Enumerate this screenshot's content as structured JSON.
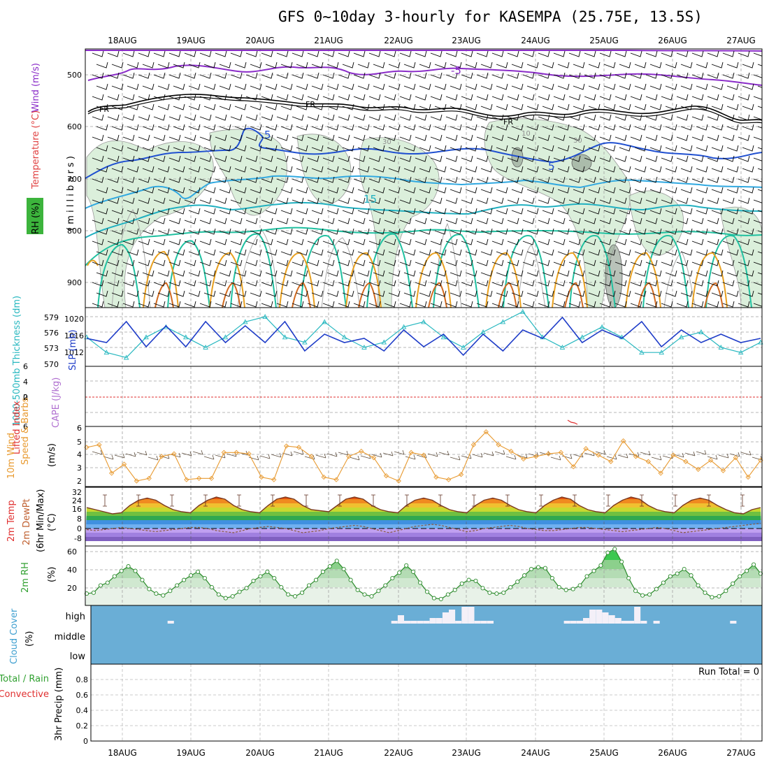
{
  "title": "GFS 0~10day 3-hourly for KASEMPA (25.75E, 13.5S)",
  "dates": [
    "18AUG",
    "19AUG",
    "20AUG",
    "21AUG",
    "22AUG",
    "23AUG",
    "24AUG",
    "25AUG",
    "26AUG",
    "27AUG"
  ],
  "labels": {
    "wind": "Wind (m/s)",
    "temperature": "Temperature (°C)",
    "rh_badge": "RH (%)",
    "millibars": "( m i l l i b a r s )",
    "thickness": "1000-500mb Thickness (dm)",
    "slp": "SLP (mb)",
    "lifted": "Lifted Index",
    "cape": "CAPE (J/kg)",
    "wind10": "10m Wind",
    "speed_barbs": "Speed & Barbs",
    "ms": "(m/s)",
    "temp2m": "2m Temp",
    "dew2m": "2m DewPt",
    "minmax": "(6hr Min/Max)",
    "celsius": "(°C)",
    "rh2m": "2m RH",
    "pct": "(%)",
    "cloud": "Cloud Cover",
    "cloud_pct": "(%)",
    "cloud_high": "high",
    "cloud_mid": "middle",
    "cloud_low": "low",
    "precip_total": "Total / Rain",
    "precip_conv": "Convective",
    "precip_3hr": "3hr Precip (mm)",
    "run_total": "Run Total = 0",
    "contour_fr": "FR",
    "contour_m5": "-5",
    "contour_5": "5",
    "contour_15": "15",
    "rh_10": "10",
    "rh_30": "30"
  },
  "colors": {
    "wind_purple": "#8a2cc8",
    "freezing": "#000000",
    "blue5": "#2050d0",
    "cyan15": "#20b0c0",
    "green": "#30c090",
    "orange": "#e8a020",
    "rh_fill": "#c8e6c8",
    "slp_line": "#1e3cc8",
    "thick_line": "#28b8c0",
    "lifted_red": "#e03030",
    "wind_orange": "#e89a30",
    "cloud_blue": "#6aaed6",
    "precip_grid": "#bbbbbb"
  },
  "chart_data": [
    {
      "type": "line",
      "panel": "upper-air",
      "ylabel": "( m i l l i b a r s )",
      "yticks": [
        500,
        600,
        700,
        800,
        900
      ],
      "ylim": [
        440,
        940
      ],
      "contours": [
        {
          "label": "-5",
          "level_mb": [
            505,
            500,
            498,
            505,
            495,
            503,
            500,
            508,
            510,
            515,
            520
          ]
        },
        {
          "label": "FR",
          "level_mb": [
            565,
            550,
            545,
            550,
            555,
            560,
            570,
            575,
            570,
            570,
            590
          ]
        },
        {
          "label": "5",
          "level_mb": [
            665,
            650,
            645,
            640,
            650,
            665,
            660,
            660,
            655,
            665,
            655
          ]
        },
        {
          "label": "15",
          "level_mb": [
            740,
            720,
            710,
            705,
            720,
            730,
            735,
            745,
            745,
            755,
            765
          ]
        }
      ]
    },
    {
      "type": "line",
      "panel": "slp-thickness",
      "ylabel_left": "1000-500mb Thickness (dm)",
      "ylabel_right": "SLP (mb)",
      "yticks_left": [
        579,
        576,
        573,
        570
      ],
      "yticks_right": [
        1020,
        1016,
        1012
      ],
      "series": [
        {
          "name": "SLP (mb)",
          "values": [
            1016,
            1015,
            1020,
            1014,
            1019,
            1014,
            1020,
            1015,
            1019,
            1015,
            1020,
            1013,
            1017,
            1015,
            1016,
            1013,
            1018,
            1014,
            1017,
            1012,
            1017,
            1013,
            1018,
            1016,
            1021,
            1015,
            1018,
            1016,
            1020,
            1014,
            1018,
            1015,
            1017,
            1015,
            1016
          ]
        },
        {
          "name": "1000-500mb Thickness (dm)",
          "values": [
            575,
            572,
            571,
            575,
            577,
            575,
            573,
            575,
            578,
            579,
            575,
            574,
            578,
            575,
            573,
            574,
            577,
            578,
            575,
            573,
            576,
            578,
            580,
            575,
            573,
            575,
            577,
            575,
            572,
            572,
            575,
            576,
            573,
            572,
            574
          ]
        }
      ]
    },
    {
      "type": "line",
      "panel": "lifted-cape",
      "ylabel": "Lifted Index",
      "ylabel_right": "CAPE (J/kg)",
      "yticks": [
        -4,
        -2,
        0,
        2,
        4,
        6
      ],
      "series": [
        {
          "name": "Lifted Index",
          "values": [
            0
          ]
        }
      ]
    },
    {
      "type": "line",
      "panel": "wind10m",
      "ylabel": "10m Wind Speed & Barbs (m/s)",
      "yticks": [
        2,
        3,
        4,
        5,
        6
      ],
      "ylim": [
        2,
        6
      ],
      "series": [
        {
          "name": "10m Wind Speed",
          "values": [
            4.6,
            4.8,
            2.6,
            3.3,
            2.0,
            2.2,
            3.9,
            4.1,
            2.1,
            2.2,
            2.2,
            4.2,
            4.2,
            4.1,
            2.3,
            2.1,
            4.7,
            4.6,
            3.9,
            2.3,
            2.1,
            3.9,
            4.3,
            3.8,
            2.4,
            2.0,
            4.2,
            4.0,
            2.3,
            2.1,
            2.5,
            4.8,
            5.8,
            4.8,
            4.3,
            3.7,
            3.9,
            4.1,
            4.2,
            3.1,
            4.5,
            4.0,
            3.5,
            5.1,
            3.9,
            3.5,
            2.6,
            4.0,
            3.5,
            2.9,
            3.6,
            2.8,
            3.8,
            2.3,
            3.6
          ]
        }
      ]
    },
    {
      "type": "area",
      "panel": "temp-dewpt",
      "ylabel": "2m Temp / 2m DewPt (6hr Min/Max) (°C)",
      "yticks": [
        -8,
        0,
        8,
        16,
        24,
        32
      ],
      "ylim": [
        -12,
        34
      ],
      "series": [
        {
          "name": "2m Temp",
          "values": [
            20,
            18,
            16,
            14,
            15,
            22,
            27,
            29,
            27,
            22,
            18,
            16,
            15,
            22,
            27,
            30,
            28,
            22,
            18,
            16,
            15,
            22,
            28,
            30,
            28,
            22,
            18,
            17,
            16,
            22,
            28,
            30,
            28,
            22,
            18,
            16,
            15,
            22,
            27,
            29,
            27,
            22,
            18,
            16,
            15,
            22,
            27,
            29,
            27,
            22,
            18,
            16,
            15,
            22,
            27,
            30,
            28,
            22,
            18,
            16,
            15,
            22,
            27,
            30,
            28,
            22,
            18,
            16,
            15,
            22,
            27,
            29,
            27,
            22,
            18,
            15,
            14,
            18,
            20
          ]
        },
        {
          "name": "2m DewPt",
          "values": [
            -1,
            -2,
            -1,
            0,
            1,
            0,
            -1,
            -2,
            -3,
            -2,
            -1,
            0,
            1,
            1,
            0,
            -2,
            -3,
            -4,
            -2,
            0,
            1,
            2,
            1,
            0,
            -2,
            -4,
            -3,
            -2,
            0,
            1,
            2,
            3,
            2,
            0,
            -2,
            -4,
            -2,
            0,
            2,
            3,
            4,
            3,
            1,
            -1,
            -3,
            -2,
            0,
            1,
            2,
            3,
            2,
            0,
            -1,
            -2,
            -2,
            -1,
            0,
            1,
            1,
            0,
            -1,
            -2,
            -3,
            -2,
            -1,
            0,
            1,
            0,
            -2,
            -4,
            -3,
            -2,
            -1,
            0,
            1,
            2,
            3,
            4,
            5
          ]
        }
      ]
    },
    {
      "type": "area",
      "panel": "rh2m",
      "ylabel": "2m RH (%)",
      "yticks": [
        20,
        40,
        60
      ],
      "ylim": [
        0,
        62
      ],
      "series": [
        {
          "name": "2m RH",
          "values": [
            13,
            14,
            22,
            25,
            32,
            38,
            43,
            38,
            28,
            18,
            13,
            11,
            16,
            22,
            28,
            33,
            37,
            30,
            20,
            12,
            8,
            10,
            15,
            19,
            27,
            32,
            37,
            30,
            20,
            12,
            10,
            14,
            22,
            28,
            37,
            43,
            49,
            40,
            28,
            17,
            12,
            10,
            16,
            22,
            30,
            36,
            44,
            37,
            25,
            15,
            8,
            7,
            12,
            17,
            24,
            28,
            27,
            19,
            14,
            13,
            14,
            20,
            26,
            33,
            40,
            42,
            41,
            30,
            20,
            17,
            18,
            22,
            32,
            38,
            44,
            58,
            62,
            48,
            30,
            16,
            11,
            12,
            18,
            25,
            32,
            35,
            40,
            33,
            22,
            14,
            9,
            10,
            16,
            24,
            32,
            38,
            45,
            35
          ]
        }
      ]
    },
    {
      "type": "bar",
      "panel": "cloud-cover",
      "yticks": [
        "low",
        "middle",
        "high"
      ],
      "series": [
        {
          "name": "high cloud cover",
          "values": [
            0,
            0,
            0,
            0,
            0,
            0,
            0,
            0,
            0,
            0,
            0,
            0,
            1,
            0,
            0,
            0,
            0,
            0,
            0,
            0,
            0,
            0,
            0,
            0,
            0,
            0,
            0,
            0,
            0,
            0,
            0,
            0,
            0,
            0,
            0,
            0,
            0,
            0,
            0,
            0,
            0,
            0,
            0,
            0,
            0,
            0,
            0,
            1,
            3,
            1,
            1,
            1,
            1,
            2,
            2,
            4,
            5,
            1,
            6,
            6,
            1,
            1,
            1,
            0,
            0,
            0,
            0,
            0,
            0,
            0,
            0,
            0,
            0,
            0,
            1,
            1,
            1,
            2,
            5,
            5,
            4,
            3,
            2,
            1,
            1,
            6,
            1,
            0,
            1,
            0,
            0,
            0,
            0,
            0,
            0,
            0,
            0,
            0,
            0,
            0,
            1,
            0,
            0,
            0,
            0
          ]
        }
      ]
    },
    {
      "type": "bar",
      "panel": "precip",
      "ylabel": "3hr Precip (mm)",
      "yticks": [
        0,
        0.2,
        0.4,
        0.6,
        0.8
      ],
      "ylim": [
        0,
        0.9
      ],
      "series": [
        {
          "name": "Total / Rain",
          "values": [
            0
          ]
        },
        {
          "name": "Convective",
          "values": [
            0
          ]
        }
      ]
    }
  ]
}
